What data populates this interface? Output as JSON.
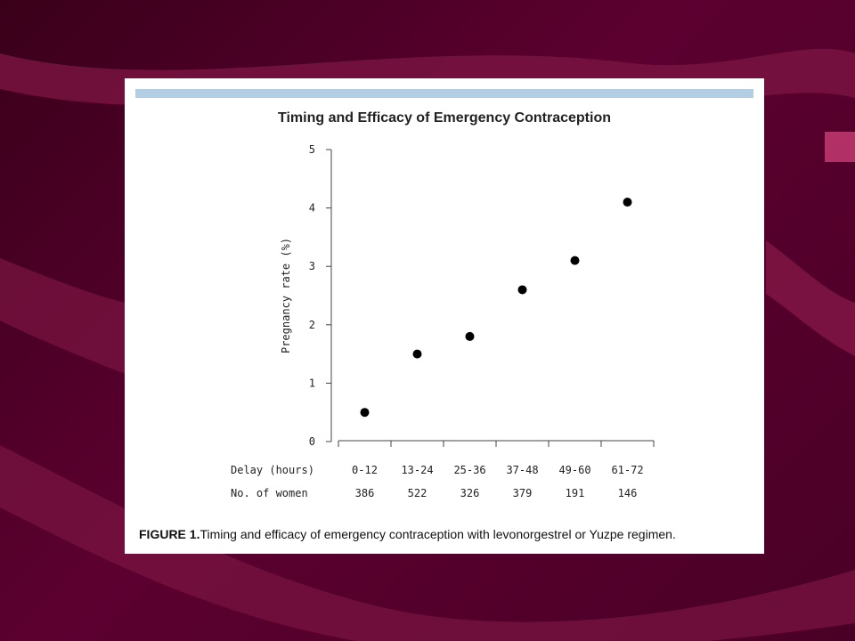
{
  "chart_data": {
    "type": "scatter",
    "title": "Timing and Efficacy of Emergency Contraception",
    "ylabel": "Pregnancy rate (%)",
    "ylim": [
      0,
      5
    ],
    "yticks": [
      "0",
      "1",
      "2",
      "3",
      "4",
      "5"
    ],
    "categories": [
      "0-12",
      "13-24",
      "25-36",
      "37-48",
      "49-60",
      "61-72"
    ],
    "values": [
      0.5,
      1.5,
      1.8,
      2.6,
      3.1,
      4.1
    ],
    "row_labels": {
      "delay": "Delay (hours)",
      "women": "No. of women"
    },
    "women": [
      "386",
      "522",
      "326",
      "379",
      "191",
      "146"
    ],
    "grid": false,
    "marker_color": "#000000"
  },
  "caption": {
    "label": "FIGURE 1.",
    "text": "Timing and efficacy of emergency contraception with levonorgestrel or Yuzpe regimen."
  },
  "colors": {
    "slide_background": "#4a0026",
    "ribbon": "#8a1a4a",
    "header_bar": "#b3cde3"
  }
}
